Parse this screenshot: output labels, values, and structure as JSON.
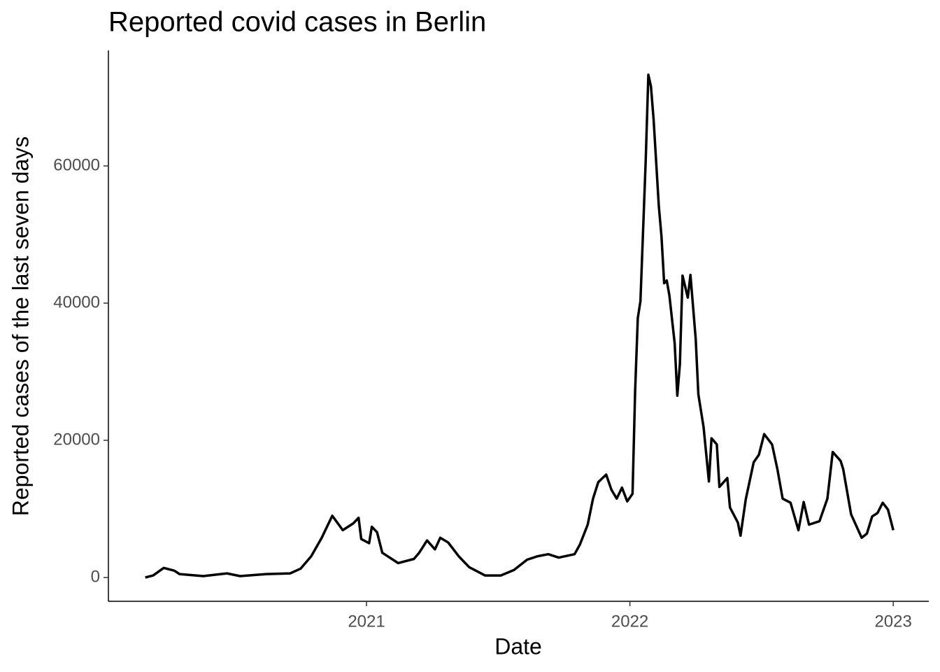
{
  "chart_data": {
    "type": "line",
    "title": "Reported covid cases in Berlin",
    "xlabel": "Date",
    "ylabel": "Reported cases of the last seven days",
    "color": "#000000",
    "x": [
      2020.16,
      2020.19,
      2020.23,
      2020.27,
      2020.29,
      2020.38,
      2020.47,
      2020.52,
      2020.62,
      2020.71,
      2020.75,
      2020.79,
      2020.83,
      2020.87,
      2020.91,
      2020.95,
      2020.97,
      2020.98,
      2021.01,
      2021.02,
      2021.04,
      2021.06,
      2021.12,
      2021.18,
      2021.2,
      2021.23,
      2021.26,
      2021.28,
      2021.31,
      2021.35,
      2021.39,
      2021.45,
      2021.51,
      2021.56,
      2021.61,
      2021.65,
      2021.69,
      2021.73,
      2021.79,
      2021.81,
      2021.84,
      2021.86,
      2021.88,
      2021.91,
      2021.93,
      2021.95,
      2021.97,
      2021.99,
      2022.01,
      2022.02,
      2022.03,
      2022.04,
      2022.06,
      2022.07,
      2022.08,
      2022.09,
      2022.11,
      2022.12,
      2022.13,
      2022.14,
      2022.15,
      2022.17,
      2022.18,
      2022.19,
      2022.2,
      2022.22,
      2022.23,
      2022.25,
      2022.26,
      2022.28,
      2022.3,
      2022.31,
      2022.33,
      2022.34,
      2022.37,
      2022.38,
      2022.41,
      2022.42,
      2022.44,
      2022.47,
      2022.49,
      2022.51,
      2022.54,
      2022.56,
      2022.58,
      2022.61,
      2022.64,
      2022.66,
      2022.68,
      2022.72,
      2022.75,
      2022.77,
      2022.8,
      2022.81,
      2022.84,
      2022.88,
      2022.9,
      2022.92,
      2022.94,
      2022.96,
      2022.98,
      2023.0
    ],
    "values": [
      0,
      300,
      1400,
      1000,
      500,
      200,
      600,
      200,
      500,
      600,
      1300,
      3100,
      5800,
      9000,
      6900,
      7900,
      8700,
      5600,
      5000,
      7400,
      6600,
      3600,
      2100,
      2700,
      3600,
      5400,
      4100,
      5800,
      5100,
      3100,
      1500,
      300,
      300,
      1100,
      2600,
      3100,
      3400,
      2900,
      3400,
      4800,
      7700,
      11500,
      13900,
      15000,
      12800,
      11500,
      13100,
      11100,
      12200,
      27200,
      37800,
      40300,
      60700,
      73300,
      71600,
      66800,
      54100,
      49700,
      42900,
      43300,
      41100,
      34200,
      26500,
      31100,
      44000,
      40800,
      44100,
      34800,
      26700,
      21900,
      14000,
      20300,
      19400,
      13200,
      14500,
      10200,
      8000,
      6100,
      11400,
      16800,
      17900,
      20900,
      19400,
      15800,
      11500,
      10900,
      6900,
      11000,
      7700,
      8200,
      11500,
      18300,
      17000,
      15800,
      9200,
      5800,
      6400,
      8900,
      9400,
      10900,
      9900,
      6900
    ],
    "xlim": [
      2020.02,
      2023.135
    ],
    "xticks": [
      2021,
      2022,
      2023
    ],
    "ylim": [
      -3470,
      76840
    ],
    "yticks": [
      0,
      20000,
      40000,
      60000
    ]
  }
}
